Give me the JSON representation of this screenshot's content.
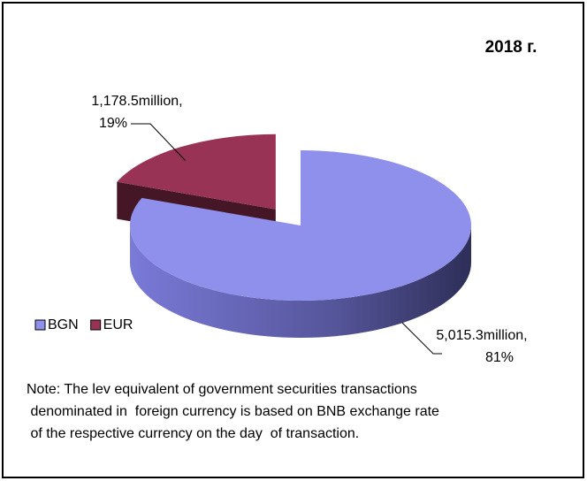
{
  "chart_data": {
    "type": "pie3d",
    "title": "2018 г.",
    "categories": [
      "BGN",
      "EUR"
    ],
    "values": [
      5015.3,
      1178.5
    ],
    "value_labels": [
      [
        "5,015.3million,",
        "81%"
      ],
      [
        "1,178.5million,",
        "19%"
      ]
    ],
    "colors": [
      "#8f8fec",
      "#993355"
    ],
    "exploded": [
      false,
      true
    ],
    "legend": "bottom-left",
    "note": [
      "Note: The lev equivalent of government securities transactions",
      " denominated in  foreign currency is based on BNB exchange rate",
      " of the respective currency on the day  of transaction."
    ]
  }
}
